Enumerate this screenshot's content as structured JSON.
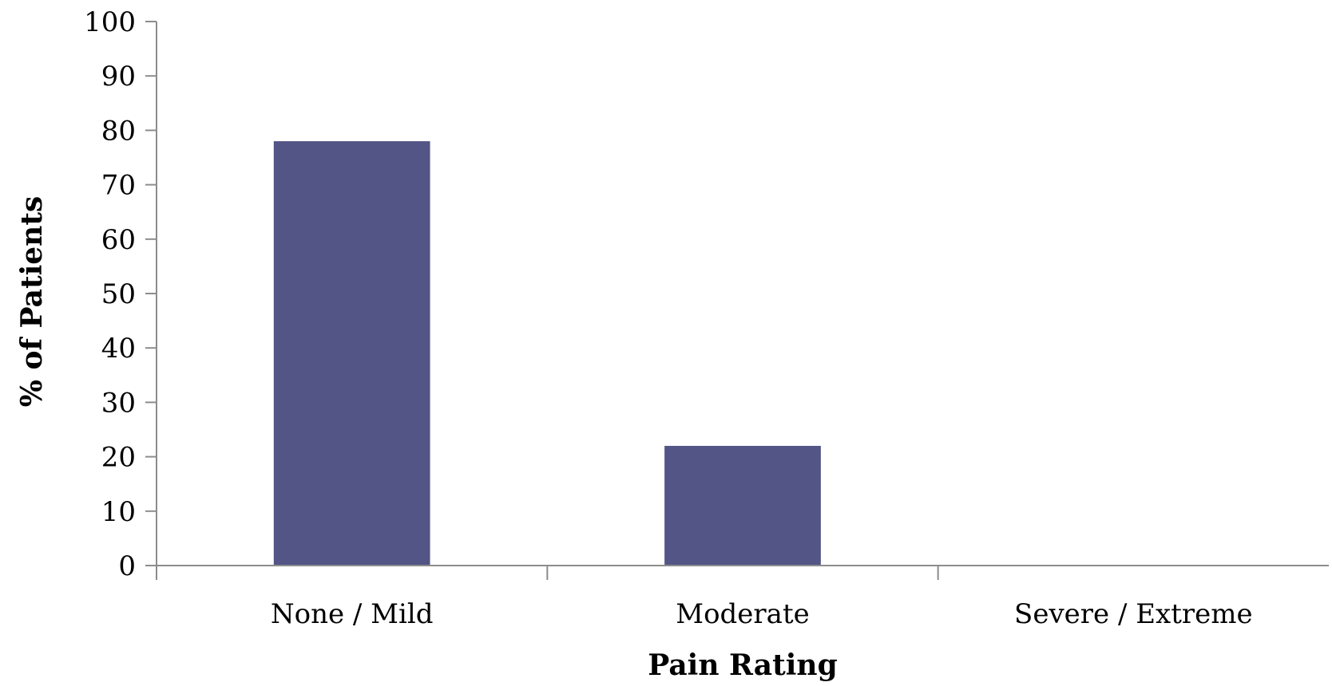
{
  "chart_data": {
    "type": "bar",
    "categories": [
      "None / Mild",
      "Moderate",
      "Severe / Extreme"
    ],
    "values": [
      78,
      22,
      0
    ],
    "title": "",
    "xlabel": "Pain Rating",
    "ylabel": "% of Patients",
    "ylim": [
      0,
      100
    ],
    "yticks": [
      "0",
      "10",
      "20",
      "30",
      "40",
      "50",
      "60",
      "70",
      "80",
      "90",
      "100"
    ],
    "grid": false,
    "legend": "none",
    "bar_color": "#535586"
  }
}
